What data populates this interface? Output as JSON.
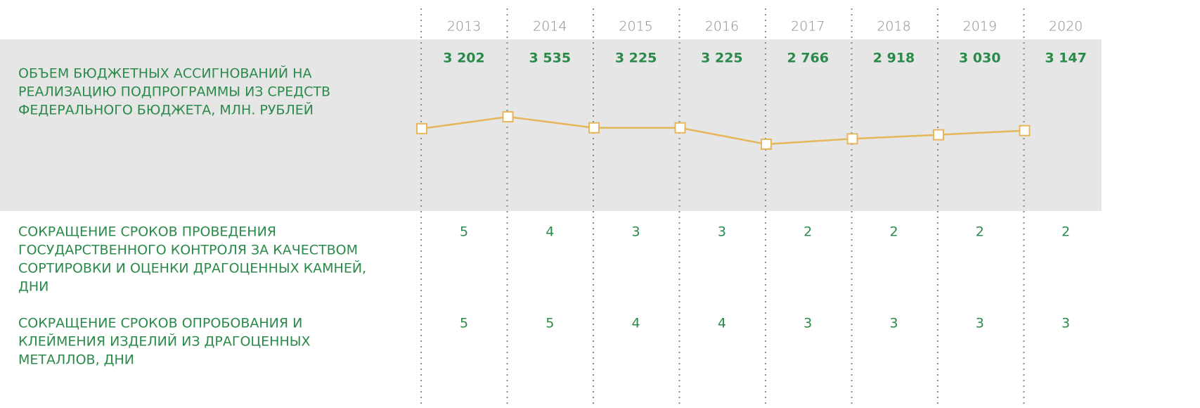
{
  "years": [
    "2013",
    "2014",
    "2015",
    "2016",
    "2017",
    "2018",
    "2019",
    "2020"
  ],
  "rows": [
    {
      "label_lines": [
        "ОБЪЕМ БЮДЖЕТНЫХ АССИГНОВАНИЙ НА",
        "РЕАЛИЗАЦИЮ ПОДПРОГРАММЫ ИЗ СРЕДСТВ",
        "ФЕДЕРАЛЬНОГО БЮДЖЕТА, МЛН. РУБЛЕЙ"
      ],
      "values": [
        3202,
        3535,
        3225,
        3225,
        2766,
        2918,
        3030,
        3147
      ],
      "value_labels": [
        "3 202",
        "3 535",
        "3 225",
        "3 225",
        "2 766",
        "2 918",
        "3 030",
        "3 147"
      ]
    },
    {
      "label_lines": [
        "СОКРАЩЕНИЕ СРОКОВ ПРОВЕДЕНИЯ",
        "ГОСУДАРСТВЕННОГО КОНТРОЛЯ ЗА КАЧЕСТВОМ",
        "СОРТИРОВКИ И ОЦЕНКИ ДРАГОЦЕННЫХ КАМНЕЙ,",
        "ДНИ"
      ],
      "values": [
        5,
        4,
        3,
        3,
        2,
        2,
        2,
        2
      ]
    },
    {
      "label_lines": [
        "СОКРАЩЕНИЕ СРОКОВ ОПРОБОВАНИЯ И",
        "КЛЕЙМЕНИЯ ИЗДЕЛИЙ ИЗ ДРАГОЦЕННЫХ",
        "МЕТАЛЛОВ, ДНИ"
      ],
      "values": [
        5,
        5,
        4,
        4,
        3,
        3,
        3,
        3
      ]
    }
  ],
  "line_color": "#e8b65a"
}
